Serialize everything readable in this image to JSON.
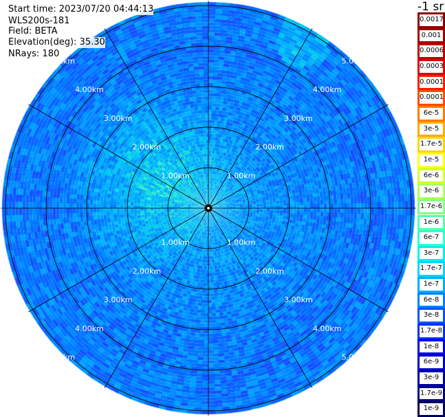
{
  "info": {
    "start_time": "Start time: 2023/07/20 04:44:13",
    "device": "WLS200s-181",
    "field": "Field: BETA",
    "elevation": "Elevation(deg): 35.30",
    "nrays": "NRays: 180"
  },
  "range_rings": [
    "1.00km",
    "2.00km",
    "3.00km",
    "4.00km",
    "5.00km"
  ],
  "colorbar": {
    "unit_title": "-1 sr",
    "entries": [
      {
        "label": "0.0017",
        "color": "#8b0000"
      },
      {
        "label": "0.001",
        "color": "#a00000"
      },
      {
        "label": "0.0006",
        "color": "#c00000"
      },
      {
        "label": "0.0003",
        "color": "#e00000"
      },
      {
        "label": "0.00017",
        "color": "#ff1a00"
      },
      {
        "label": "0.0001",
        "color": "#ff4a00"
      },
      {
        "label": "6e-5",
        "color": "#ff7a00"
      },
      {
        "label": "3e-5",
        "color": "#ffaa00"
      },
      {
        "label": "1.7e-5",
        "color": "#ffd400"
      },
      {
        "label": "1e-5",
        "color": "#ffff00"
      },
      {
        "label": "6e-6",
        "color": "#d4ff2b"
      },
      {
        "label": "3e-6",
        "color": "#aaff55"
      },
      {
        "label": "1.7e-6",
        "color": "#80ff80"
      },
      {
        "label": "1e-6",
        "color": "#55ffaa"
      },
      {
        "label": "6e-7",
        "color": "#2bffd4"
      },
      {
        "label": "3e-7",
        "color": "#00f0f0"
      },
      {
        "label": "1.7e-7",
        "color": "#00d4ff"
      },
      {
        "label": "1e-7",
        "color": "#00aaff"
      },
      {
        "label": "6e-8",
        "color": "#0080ff"
      },
      {
        "label": "3e-8",
        "color": "#0055ff"
      },
      {
        "label": "1.7e-8",
        "color": "#002bff"
      },
      {
        "label": "1e-8",
        "color": "#0000f0"
      },
      {
        "label": "6e-9",
        "color": "#0000c8"
      },
      {
        "label": "3e-9",
        "color": "#0000a0"
      },
      {
        "label": "1.7e-9",
        "color": "#000080"
      },
      {
        "label": "1e-9",
        "color": "#000060"
      }
    ]
  }
}
